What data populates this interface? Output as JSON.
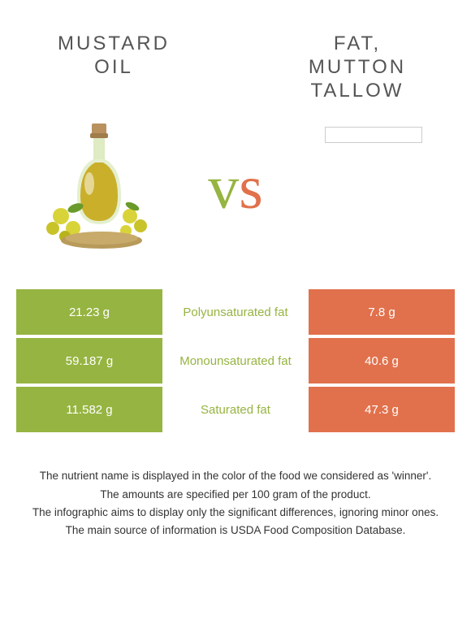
{
  "colors": {
    "left": "#96b441",
    "right": "#e1714c",
    "title": "#555555",
    "footer": "#333333",
    "bg": "#ffffff"
  },
  "left_food": {
    "title_line1": "Mustard",
    "title_line2": "oil"
  },
  "right_food": {
    "title_line1": "Fat,",
    "title_line2": "mutton",
    "title_line3": "tallow"
  },
  "vs": {
    "v": "v",
    "s": "s"
  },
  "rows": [
    {
      "left": "21.23 g",
      "label": "Polyunsaturated fat",
      "right": "7.8 g",
      "winner": "left"
    },
    {
      "left": "59.187 g",
      "label": "Monounsaturated fat",
      "right": "40.6 g",
      "winner": "left"
    },
    {
      "left": "11.582 g",
      "label": "Saturated fat",
      "right": "47.3 g",
      "winner": "left"
    }
  ],
  "footer": {
    "line1": "The nutrient name is displayed in the color of the food we considered as 'winner'.",
    "line2": "The amounts are specified per 100 gram of the product.",
    "line3": "The infographic aims to display only the significant differences, ignoring minor ones.",
    "line4": "The main source of information is USDA Food Composition Database."
  }
}
